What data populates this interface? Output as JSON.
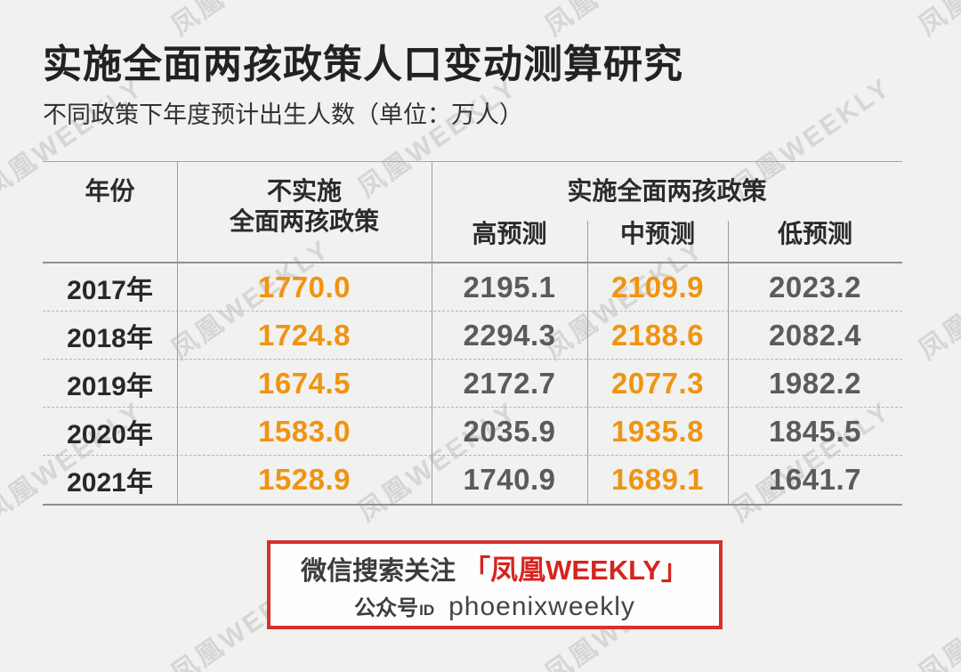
{
  "page": {
    "background_color": "#f1f1ef"
  },
  "watermark": {
    "text": "凤凰WEEKLY",
    "color": "#dcdcda"
  },
  "header": {
    "title": "实施全面两孩政策人口变动测算研究",
    "subtitle": "不同政策下年度预计出生人数（单位：万人）"
  },
  "table": {
    "headers": {
      "year": "年份",
      "no_policy_line1": "不实施",
      "no_policy_line2": "全面两孩政策",
      "policy_group": "实施全面两孩政策",
      "high": "高预测",
      "mid": "中预测",
      "low": "低预测"
    },
    "rows": [
      {
        "year": "2017年",
        "no_policy": "1770.0",
        "high": "2195.1",
        "mid": "2109.9",
        "low": "2023.2"
      },
      {
        "year": "2018年",
        "no_policy": "1724.8",
        "high": "2294.3",
        "mid": "2188.6",
        "low": "2082.4"
      },
      {
        "year": "2019年",
        "no_policy": "1674.5",
        "high": "2172.7",
        "mid": "2077.3",
        "low": "1982.2"
      },
      {
        "year": "2020年",
        "no_policy": "1583.0",
        "high": "2035.9",
        "mid": "1935.8",
        "low": "1845.5"
      },
      {
        "year": "2021年",
        "no_policy": "1528.9",
        "high": "1740.9",
        "mid": "1689.1",
        "low": "1641.7"
      }
    ],
    "colors": {
      "highlight_orange": "#ef9412",
      "normal_gray": "#5b5b5b",
      "year_dark": "#282828"
    }
  },
  "footer_box": {
    "line1_prefix": "微信搜索关注",
    "line1_highlight": "「凤凰WEEKLY」",
    "line2_label": "公众号",
    "line2_id": "ID",
    "line2_value": "phoenixweekly",
    "accent_red": "#d5312e"
  },
  "chart_data": {
    "type": "table",
    "title": "实施全面两孩政策人口变动测算研究",
    "subtitle": "不同政策下年度预计出生人数（单位：万人）",
    "unit": "万人",
    "columns": [
      "年份",
      "不实施全面两孩政策",
      "实施全面两孩政策-高预测",
      "实施全面两孩政策-中预测",
      "实施全面两孩政策-低预测"
    ],
    "rows": [
      [
        "2017年",
        1770.0,
        2195.1,
        2109.9,
        2023.2
      ],
      [
        "2018年",
        1724.8,
        2294.3,
        2188.6,
        2082.4
      ],
      [
        "2019年",
        1674.5,
        2172.7,
        2077.3,
        1982.2
      ],
      [
        "2020年",
        1583.0,
        2035.9,
        1935.8,
        1845.5
      ],
      [
        "2021年",
        1528.9,
        1740.9,
        1689.1,
        1641.7
      ]
    ],
    "highlighted_columns": [
      "不实施全面两孩政策",
      "实施全面两孩政策-中预测"
    ],
    "highlight_color": "#ef9412"
  }
}
